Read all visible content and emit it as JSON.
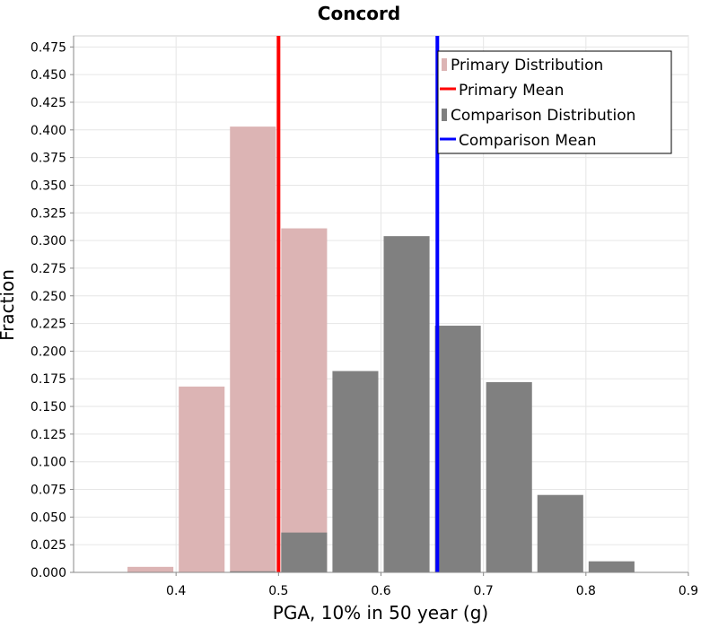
{
  "chart_data": {
    "type": "bar",
    "title": "Concord",
    "xlabel": "PGA, 10% in 50 year (g)",
    "ylabel": "Fraction",
    "xlim": [
      0.3,
      0.9
    ],
    "ylim": [
      0,
      0.485
    ],
    "x_ticks": [
      "0.4",
      "0.5",
      "0.6",
      "0.7",
      "0.8",
      "0.9"
    ],
    "y_ticks": [
      "0.000",
      "0.025",
      "0.050",
      "0.075",
      "0.100",
      "0.125",
      "0.150",
      "0.175",
      "0.200",
      "0.225",
      "0.250",
      "0.275",
      "0.300",
      "0.325",
      "0.350",
      "0.375",
      "0.400",
      "0.425",
      "0.450",
      "0.475"
    ],
    "bin_width": 0.05,
    "series": [
      {
        "name": "Primary Distribution",
        "color": "#dcb4b4",
        "bins": [
          0.35,
          0.4,
          0.45,
          0.5
        ],
        "values": [
          0.005,
          0.168,
          0.403,
          0.311
        ]
      },
      {
        "name": "Comparison Distribution",
        "color": "#808080",
        "bins": [
          0.45,
          0.5,
          0.55,
          0.6,
          0.65,
          0.7,
          0.75,
          0.8
        ],
        "values": [
          0.001,
          0.036,
          0.182,
          0.304,
          0.223,
          0.172,
          0.07,
          0.01
        ]
      }
    ],
    "lines": [
      {
        "name": "Primary Mean",
        "x": 0.5,
        "color": "#ff0000"
      },
      {
        "name": "Comparison Mean",
        "x": 0.655,
        "color": "#0000ff"
      }
    ],
    "legend": {
      "position": "top-right",
      "entries": [
        "Primary Distribution",
        "Primary Mean",
        "Comparison Distribution",
        "Comparison Mean"
      ]
    }
  }
}
